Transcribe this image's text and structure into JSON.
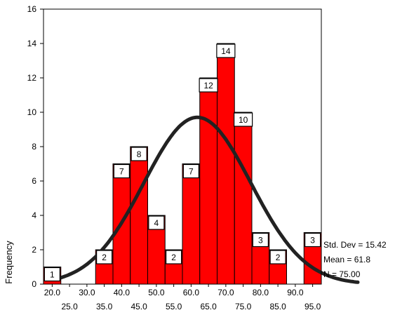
{
  "chart_data": {
    "type": "bar",
    "subtype": "histogram",
    "title": "",
    "xlabel": "",
    "ylabel": "Frequency",
    "bin_width": 5,
    "bin_start": 17.5,
    "x_labels_row1": [
      "20.0",
      "30.0",
      "40.0",
      "50.0",
      "60.0",
      "70.0",
      "80.0",
      "90.0"
    ],
    "x_labels_row2": [
      "25.0",
      "35.0",
      "45.0",
      "55.0",
      "65.0",
      "75.0",
      "85.0",
      "95.0"
    ],
    "categories": [
      "20.0",
      "25.0",
      "30.0",
      "35.0",
      "40.0",
      "45.0",
      "50.0",
      "55.0",
      "60.0",
      "65.0",
      "70.0",
      "75.0",
      "80.0",
      "85.0",
      "90.0",
      "95.0"
    ],
    "values": [
      1,
      0,
      0,
      2,
      7,
      8,
      4,
      2,
      7,
      12,
      14,
      10,
      3,
      2,
      0,
      3
    ],
    "count_labels": [
      "1",
      "",
      "",
      "2",
      "7",
      "8",
      "4",
      "2",
      "7",
      "12",
      "14",
      "10",
      "3",
      "2",
      "",
      "3"
    ],
    "y_ticks": [
      "0",
      "2",
      "4",
      "6",
      "8",
      "10",
      "12",
      "14",
      "16"
    ],
    "ylim": [
      0,
      16
    ],
    "xlim": [
      17.5,
      97.5
    ],
    "normal_curve": {
      "mean": 61.8,
      "std_dev": 15.42,
      "n": 75
    },
    "stats": [
      "Std. Dev = 15.42",
      "Mean = 61.8",
      "N = 75.00"
    ],
    "bar_color": "#ff0000",
    "curve_color": "#222222",
    "grid": false
  }
}
